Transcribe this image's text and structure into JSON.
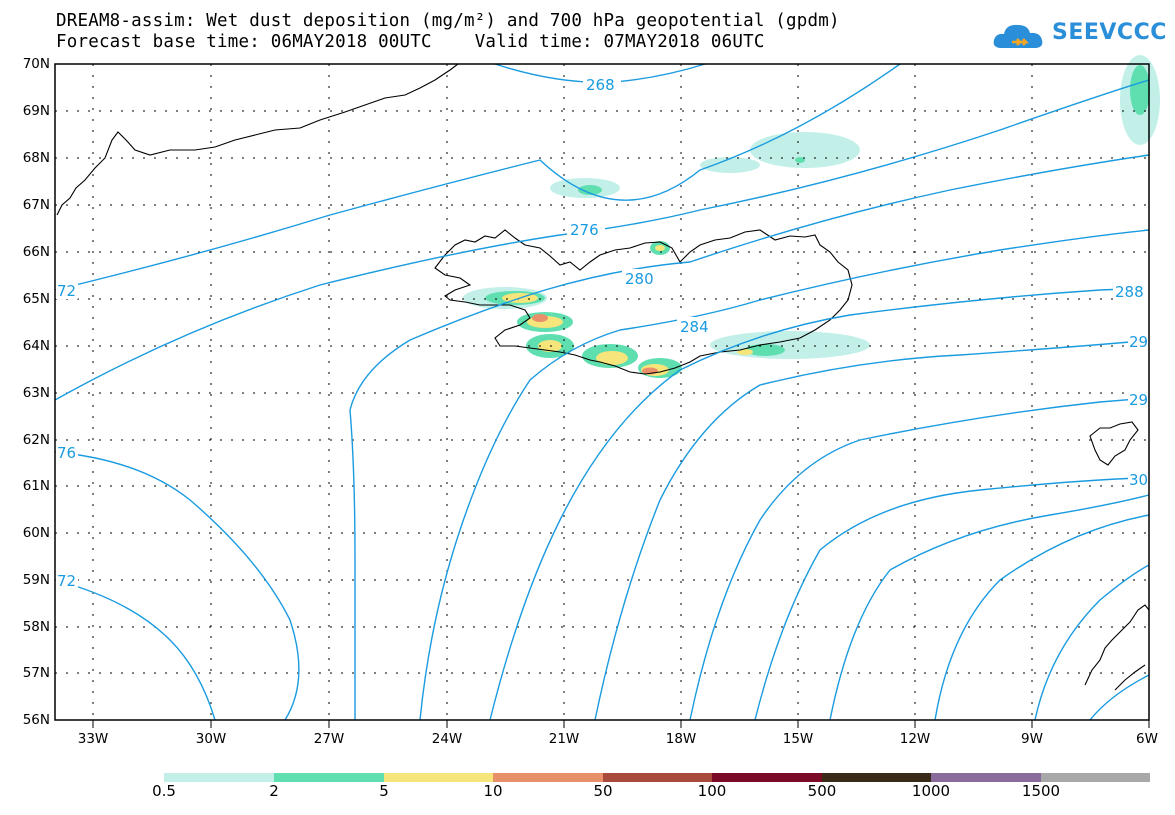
{
  "title_line1": "DREAM8-assim: Wet dust deposition (mg/m²) and 700 hPa geopotential (gpdm)",
  "title_line2": "Forecast base time: 06MAY2018 00UTC    Valid time: 07MAY2018 06UTC",
  "logo_text": "SEEVCCC",
  "lat_labels": [
    "70N",
    "69N",
    "68N",
    "67N",
    "66N",
    "65N",
    "64N",
    "63N",
    "62N",
    "61N",
    "60N",
    "59N",
    "58N",
    "57N",
    "56N"
  ],
  "lon_labels": [
    "33W",
    "30W",
    "27W",
    "24W",
    "21W",
    "18W",
    "15W",
    "12W",
    "9W",
    "6W"
  ],
  "contour_labels": [
    "268",
    "276",
    "280",
    "284",
    "288",
    "72",
    "76",
    "72",
    "29",
    "29",
    "30"
  ],
  "colorbar": {
    "labels": [
      "0.5",
      "2",
      "5",
      "10",
      "50",
      "100",
      "500",
      "1000",
      "1500"
    ],
    "colors": [
      "#c2f0e8",
      "#5fdfb0",
      "#f5e57a",
      "#e8906a",
      "#a84a3c",
      "#7a0a26",
      "#3a2a18",
      "#8a6a9a",
      "#a8a8a8"
    ]
  },
  "icons": {
    "logo": "cloud-logo-icon"
  }
}
